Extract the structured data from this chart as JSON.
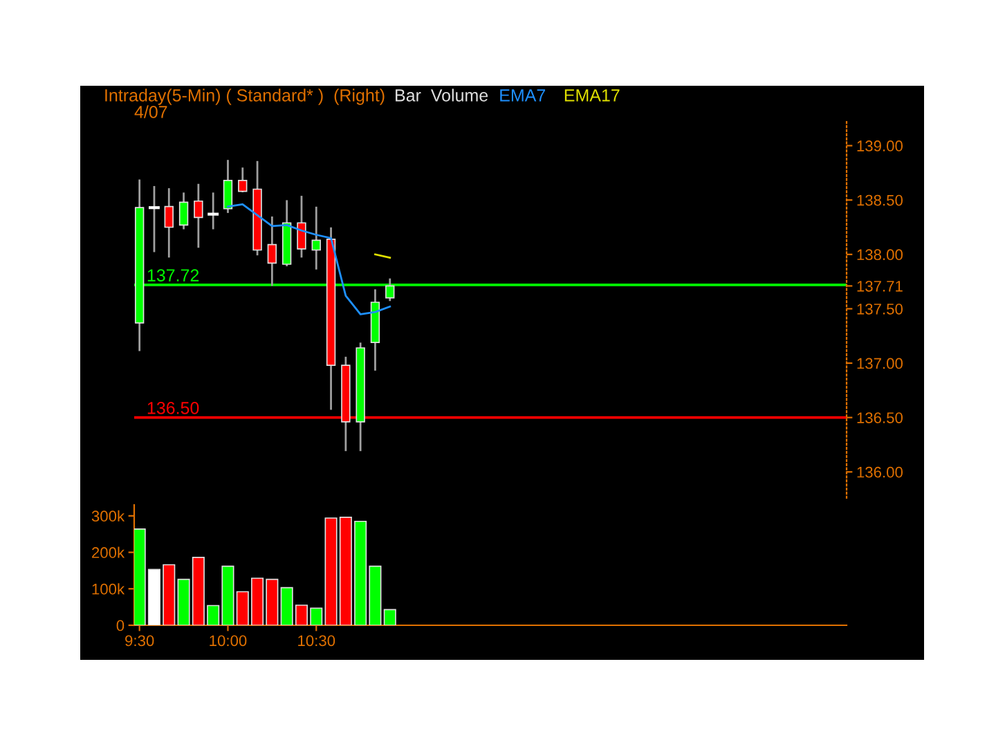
{
  "chart_data": [
    {
      "type": "candlestick",
      "title": "Intraday(5-Min) ( Standard* )  (Right)",
      "subtitle": "4/07",
      "annotations": [
        "Bar  Volume"
      ],
      "x": [
        9.5,
        9.5833,
        9.6667,
        9.75,
        9.8333,
        9.9167,
        10,
        10.0833,
        10.1667,
        10.25,
        10.3333,
        10.4167,
        10.5,
        10.5833,
        10.6667,
        10.75,
        10.8333,
        10.9167
      ],
      "ohlc": [
        [
          137.37,
          138.68,
          137.12,
          138.43
        ],
        [
          138.43,
          138.62,
          138.03,
          138.43
        ],
        [
          138.44,
          138.6,
          137.98,
          138.25
        ],
        [
          138.27,
          138.56,
          138.24,
          138.48
        ],
        [
          138.49,
          138.64,
          138.07,
          138.34
        ],
        [
          138.37,
          138.56,
          138.24,
          138.37
        ],
        [
          138.42,
          138.86,
          138.39,
          138.68
        ],
        [
          138.68,
          138.79,
          138.58,
          138.58
        ],
        [
          138.6,
          138.85,
          138.0,
          138.04
        ],
        [
          138.09,
          138.34,
          137.72,
          137.92
        ],
        [
          137.91,
          138.49,
          137.9,
          138.29
        ],
        [
          138.29,
          138.53,
          137.98,
          138.05
        ],
        [
          138.04,
          138.43,
          137.87,
          138.13
        ],
        [
          138.14,
          138.24,
          136.58,
          136.98
        ],
        [
          136.98,
          137.05,
          136.2,
          136.46
        ],
        [
          136.46,
          137.18,
          136.2,
          137.14
        ],
        [
          137.19,
          137.67,
          136.94,
          137.56
        ],
        [
          137.6,
          137.77,
          137.58,
          137.71
        ]
      ],
      "colors": [
        "#00ff00",
        "#ffffff",
        "#ff0000",
        "#00ff00",
        "#ff0000",
        "#ffffff",
        "#00ff00",
        "#ff0000",
        "#ff0000",
        "#ff0000",
        "#00ff00",
        "#ff0000",
        "#00ff00",
        "#ff0000",
        "#ff0000",
        "#00ff00",
        "#00ff00",
        "#00ff00"
      ],
      "series": [
        {
          "name": "EMA7",
          "type": "line",
          "color": "#1e90ff",
          "x": [
            10,
            10.0833,
            10.1667,
            10.25,
            10.3333,
            10.4167,
            10.5,
            10.5833,
            10.6667,
            10.75,
            10.8333,
            10.9167
          ],
          "values": [
            138.44,
            138.46,
            138.36,
            138.26,
            138.27,
            138.22,
            138.18,
            138.15,
            137.62,
            137.45,
            137.47,
            137.52
          ]
        },
        {
          "name": "EMA17",
          "type": "line",
          "color": "#e0e000",
          "x": [
            10.8333,
            10.9167
          ],
          "values": [
            138.0,
            137.97
          ]
        }
      ],
      "legend": "top",
      "ref_lines": [
        {
          "axis": "y",
          "value": 137.72,
          "label": "137.72",
          "color": "#00ff00"
        },
        {
          "axis": "y",
          "value": 136.5,
          "label": "136.50",
          "color": "#ff0000"
        }
      ],
      "xlim": [
        9.47,
        13.5
      ],
      "ylim": [
        135.76,
        139.22
      ],
      "yticks": [
        {
          "value": 136,
          "label": "136.00"
        },
        {
          "value": 136.5,
          "label": "136.50"
        },
        {
          "value": 137,
          "label": "137.00"
        },
        {
          "value": 137.5,
          "label": "137.50"
        },
        {
          "value": 137.71,
          "label": "137.71"
        },
        {
          "value": 138,
          "label": "138.00"
        },
        {
          "value": 138.5,
          "label": "138.50"
        },
        {
          "value": 139,
          "label": "139.00"
        }
      ],
      "tick_labels": "y",
      "grid": false
    },
    {
      "type": "bar",
      "x": [
        9.5,
        9.5833,
        9.6667,
        9.75,
        9.8333,
        9.9167,
        10,
        10.0833,
        10.1667,
        10.25,
        10.3333,
        10.4167,
        10.5,
        10.5833,
        10.6667,
        10.75,
        10.8333,
        10.9167
      ],
      "values": [
        264000,
        153000,
        166000,
        126000,
        186000,
        54000,
        162000,
        92000,
        129000,
        126000,
        103000,
        55000,
        47000,
        294000,
        296000,
        285000,
        162000,
        43000
      ],
      "colors": [
        "#00ff00",
        "#ffffff",
        "#ff0000",
        "#00ff00",
        "#ff0000",
        "#00ff00",
        "#00ff00",
        "#ff0000",
        "#ff0000",
        "#ff0000",
        "#00ff00",
        "#ff0000",
        "#00ff00",
        "#ff0000",
        "#ff0000",
        "#00ff00",
        "#00ff00",
        "#00ff00"
      ],
      "xlim": [
        9.47,
        13.5
      ],
      "ylim": [
        0,
        330000
      ],
      "xticks": [
        {
          "value": 9.5,
          "label": "9:30"
        },
        {
          "value": 10,
          "label": "10:00"
        },
        {
          "value": 10.5,
          "label": "10:30"
        }
      ],
      "yticks": [
        0,
        {
          "value": 100000,
          "label": "100k"
        },
        {
          "value": 200000,
          "label": "200k"
        },
        {
          "value": 300000,
          "label": "300k"
        }
      ],
      "grid": false
    }
  ]
}
